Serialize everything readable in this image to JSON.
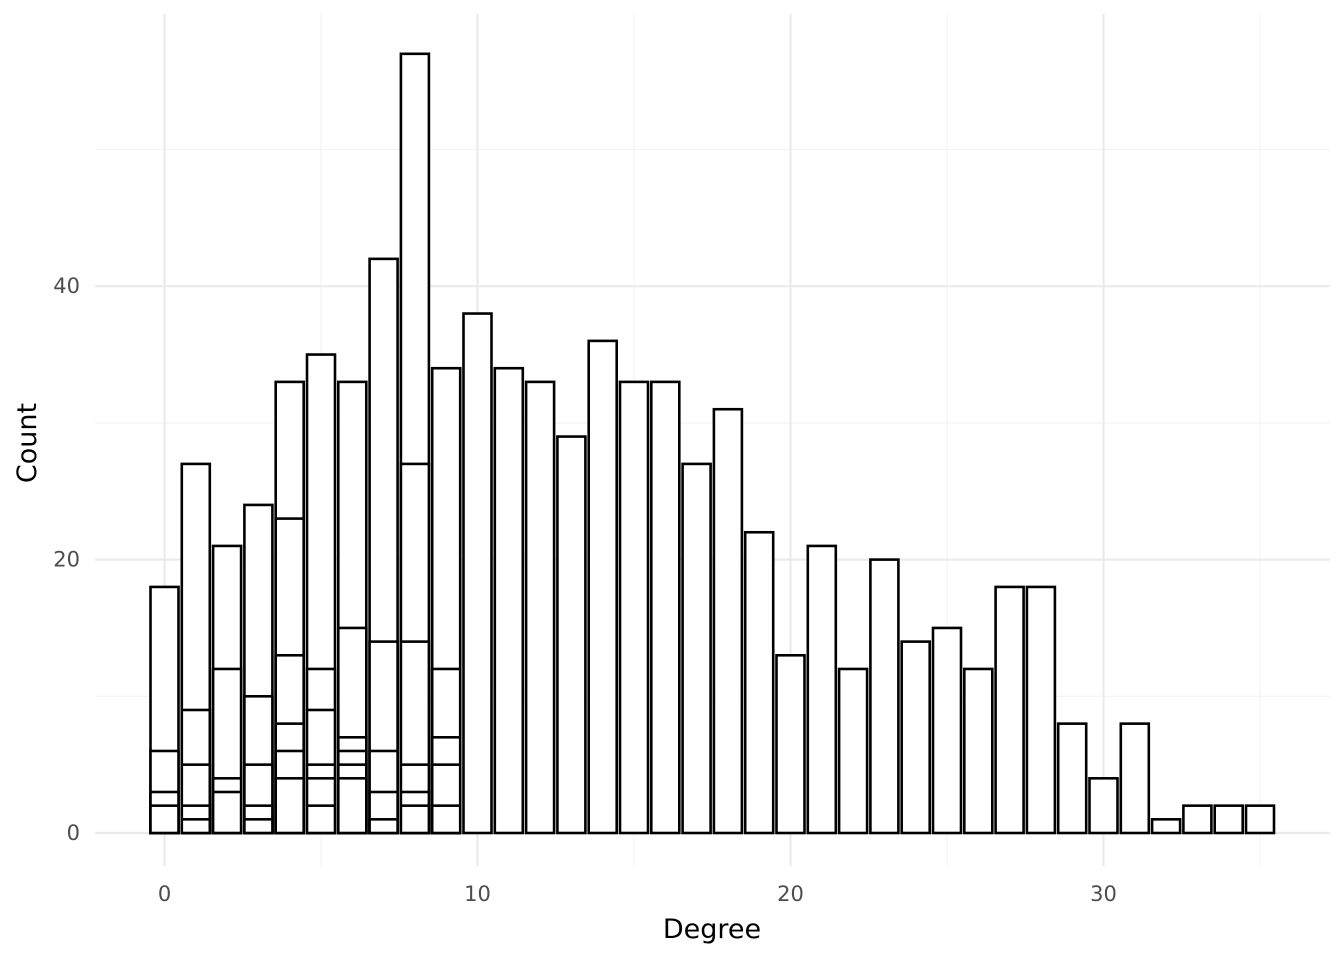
{
  "chart_data": {
    "type": "bar",
    "title": "",
    "xlabel": "Degree",
    "ylabel": "Count",
    "xlim": [
      -2.2,
      37.1
    ],
    "ylim": [
      -2.5,
      60
    ],
    "x_ticks": [
      0,
      10,
      20,
      30
    ],
    "y_ticks": [
      0,
      20,
      40
    ],
    "grid": true,
    "bar_fill": "#ffffff",
    "bar_stroke": "#000000",
    "bars": [
      {
        "x": 0,
        "segments": [
          2,
          3,
          6,
          18
        ]
      },
      {
        "x": 1,
        "segments": [
          1,
          2,
          5,
          9,
          27
        ]
      },
      {
        "x": 2,
        "segments": [
          3,
          4,
          12,
          21
        ]
      },
      {
        "x": 3,
        "segments": [
          1,
          2,
          5,
          10,
          24
        ]
      },
      {
        "x": 4,
        "segments": [
          4,
          6,
          8,
          13,
          23,
          33
        ]
      },
      {
        "x": 5,
        "segments": [
          2,
          4,
          5,
          9,
          12,
          35
        ]
      },
      {
        "x": 6,
        "segments": [
          4,
          5,
          6,
          7,
          15,
          33
        ]
      },
      {
        "x": 7,
        "segments": [
          1,
          3,
          6,
          14,
          42
        ]
      },
      {
        "x": 8,
        "segments": [
          2,
          3,
          5,
          14,
          27,
          57
        ]
      },
      {
        "x": 9,
        "segments": [
          2,
          5,
          7,
          12,
          34
        ]
      },
      {
        "x": 10,
        "segments": [
          38
        ]
      },
      {
        "x": 11,
        "segments": [
          34
        ]
      },
      {
        "x": 12,
        "segments": [
          33
        ]
      },
      {
        "x": 13,
        "segments": [
          29
        ]
      },
      {
        "x": 14,
        "segments": [
          36
        ]
      },
      {
        "x": 15,
        "segments": [
          33
        ]
      },
      {
        "x": 16,
        "segments": [
          33
        ]
      },
      {
        "x": 17,
        "segments": [
          27
        ]
      },
      {
        "x": 18,
        "segments": [
          31
        ]
      },
      {
        "x": 19,
        "segments": [
          22
        ]
      },
      {
        "x": 20,
        "segments": [
          13
        ]
      },
      {
        "x": 21,
        "segments": [
          21
        ]
      },
      {
        "x": 22,
        "segments": [
          12
        ]
      },
      {
        "x": 23,
        "segments": [
          20
        ]
      },
      {
        "x": 24,
        "segments": [
          14
        ]
      },
      {
        "x": 25,
        "segments": [
          15
        ]
      },
      {
        "x": 26,
        "segments": [
          12
        ]
      },
      {
        "x": 27,
        "segments": [
          18
        ]
      },
      {
        "x": 28,
        "segments": [
          18
        ]
      },
      {
        "x": 29,
        "segments": [
          8
        ]
      },
      {
        "x": 30,
        "segments": [
          4
        ]
      },
      {
        "x": 31,
        "segments": [
          8
        ]
      },
      {
        "x": 32,
        "segments": [
          1
        ]
      },
      {
        "x": 33,
        "segments": [
          2
        ]
      },
      {
        "x": 34,
        "segments": [
          2
        ]
      },
      {
        "x": 35,
        "segments": [
          2
        ]
      }
    ]
  }
}
